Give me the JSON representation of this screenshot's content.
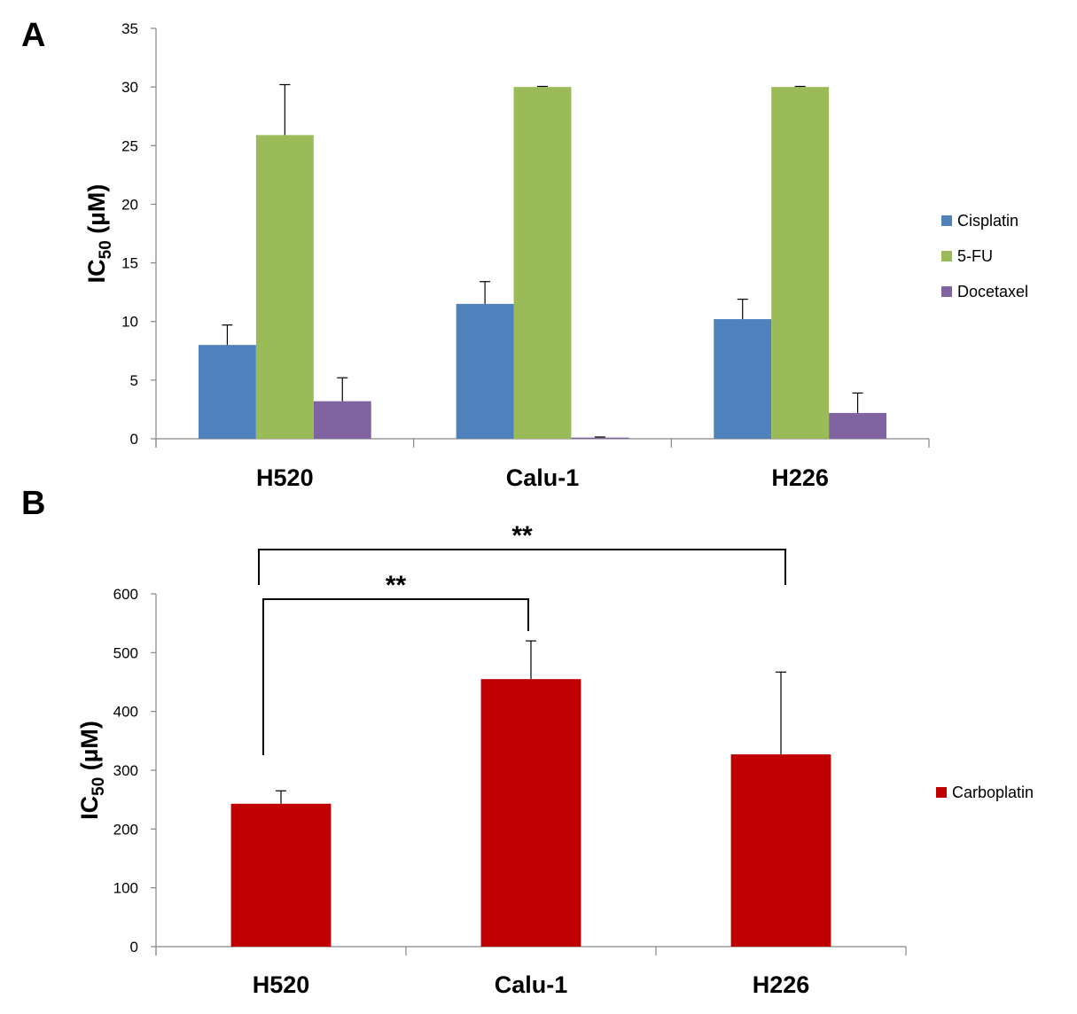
{
  "chart_data": [
    {
      "panel": "A",
      "type": "bar",
      "ylabel_main": "IC",
      "ylabel_sub": "50",
      "ylabel_unit": " (µM)",
      "ylim": [
        0,
        35
      ],
      "yticks": [
        "0",
        "5",
        "10",
        "15",
        "20",
        "25",
        "30",
        "35"
      ],
      "categories": [
        "H520",
        "Calu-1",
        "H226"
      ],
      "legend_position": "right",
      "grid": false,
      "series": [
        {
          "name": "Cisplatin",
          "color": "#4f81bd",
          "values": [
            8.0,
            11.5,
            10.2
          ],
          "errors": [
            1.7,
            1.9,
            1.7
          ]
        },
        {
          "name": "5-FU",
          "color": "#9bbb59",
          "values": [
            25.9,
            30.0,
            30.0
          ],
          "errors": [
            4.3,
            0.05,
            0.05
          ]
        },
        {
          "name": "Docetaxel",
          "color": "#8064a2",
          "values": [
            3.2,
            0.1,
            2.2
          ],
          "errors": [
            2.0,
            0.05,
            1.7
          ]
        }
      ]
    },
    {
      "panel": "B",
      "type": "bar",
      "ylabel_main": "IC",
      "ylabel_sub": "50",
      "ylabel_unit": " (µM)",
      "ylim": [
        0,
        600
      ],
      "yticks": [
        "0",
        "100",
        "200",
        "300",
        "400",
        "500",
        "600"
      ],
      "categories": [
        "H520",
        "Calu-1",
        "H226"
      ],
      "legend_position": "right",
      "grid": false,
      "series": [
        {
          "name": "Carboplatin",
          "color": "#c00000",
          "values": [
            243,
            455,
            327
          ],
          "errors": [
            22,
            65,
            140
          ]
        }
      ],
      "significance": [
        {
          "from": "H520",
          "to": "Calu-1",
          "label": "**"
        },
        {
          "from": "H520",
          "to": "H226",
          "label": "**"
        }
      ]
    }
  ]
}
